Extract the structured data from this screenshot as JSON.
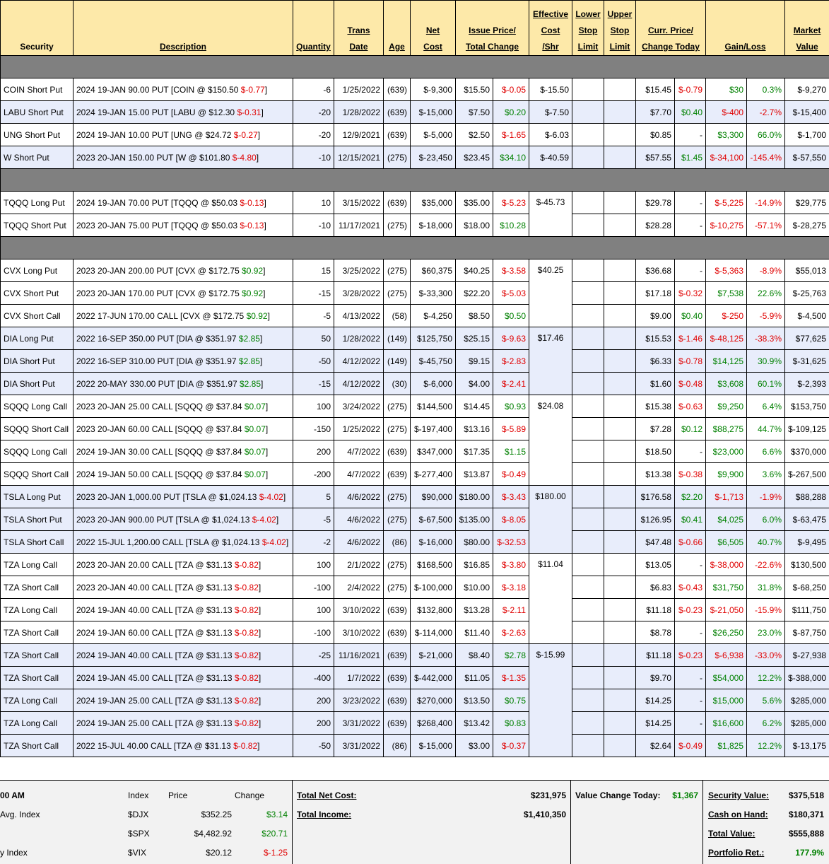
{
  "headers": {
    "security": "Security",
    "description": "Description",
    "quantity": "Quantity",
    "trans_date": [
      "Trans",
      "Date"
    ],
    "age": "Age",
    "net_cost": [
      "Net",
      "Cost"
    ],
    "issue_price": [
      "Issue Price/",
      "Total Change"
    ],
    "eff_cost": [
      "Effective",
      "Cost",
      "/Shr"
    ],
    "lower_stop": [
      "Lower",
      "Stop",
      "Limit"
    ],
    "upper_stop": [
      "Upper",
      "Stop",
      "Limit"
    ],
    "curr_price": [
      "Curr. Price/",
      "Change Today"
    ],
    "gain_loss": "Gain/Loss",
    "market_value": [
      "Market",
      "Value"
    ]
  },
  "groups": [
    {
      "rows": [
        {
          "sec": "COIN Short Put",
          "desc": "2024 19-JAN 90.00 PUT [COIN @ $150.50 ",
          "dchg": "$-0.77",
          "dchg_c": "neg",
          "qty": "-6",
          "date": "1/25/2022",
          "age": "(639)",
          "cost": "$-9,300",
          "issue": "$15.50",
          "tchg": "$-0.05",
          "tchg_c": "neg",
          "eff": "$-15.50",
          "curr": "$15.45",
          "today": "$-0.79",
          "today_c": "neg",
          "gl": "$30",
          "gl_c": "pos",
          "pct": "0.3%",
          "pct_c": "pos",
          "mv": "$-9,270",
          "bg": "w"
        },
        {
          "sec": "LABU Short Put",
          "desc": "2024 19-JAN 15.00 PUT [LABU @ $12.30 ",
          "dchg": "$-0.31",
          "dchg_c": "neg",
          "qty": "-20",
          "date": "1/28/2022",
          "age": "(639)",
          "cost": "$-15,000",
          "issue": "$7.50",
          "tchg": "$0.20",
          "tchg_c": "pos",
          "eff": "$-7.50",
          "curr": "$7.70",
          "today": "$0.40",
          "today_c": "pos",
          "gl": "$-400",
          "gl_c": "neg",
          "pct": "-2.7%",
          "pct_c": "neg",
          "mv": "$-15,400",
          "bg": "b"
        },
        {
          "sec": "UNG Short Put",
          "desc": "2024 19-JAN 10.00 PUT [UNG @ $24.72 ",
          "dchg": "$-0.27",
          "dchg_c": "neg",
          "qty": "-20",
          "date": "12/9/2021",
          "age": "(639)",
          "cost": "$-5,000",
          "issue": "$2.50",
          "tchg": "$-1.65",
          "tchg_c": "neg",
          "eff": "$-6.03",
          "curr": "$0.85",
          "today": "-",
          "today_c": "",
          "gl": "$3,300",
          "gl_c": "pos",
          "pct": "66.0%",
          "pct_c": "pos",
          "mv": "$-1,700",
          "bg": "w"
        },
        {
          "sec": "W Short Put",
          "desc": "2023 20-JAN 150.00 PUT [W @ $101.80 ",
          "dchg": "$-4.80",
          "dchg_c": "neg",
          "qty": "-10",
          "date": "12/15/2021",
          "age": "(275)",
          "cost": "$-23,450",
          "issue": "$23.45",
          "tchg": "$34.10",
          "tchg_c": "pos",
          "eff": "$-40.59",
          "curr": "$57.55",
          "today": "$1.45",
          "today_c": "pos",
          "gl": "$-34,100",
          "gl_c": "neg",
          "pct": "-145.4%",
          "pct_c": "neg",
          "mv": "$-57,550",
          "bg": "b"
        }
      ]
    },
    {
      "rows": [
        {
          "sec": "TQQQ Long Put",
          "desc": "2024 19-JAN 70.00 PUT [TQQQ @ $50.03 ",
          "dchg": "$-0.13",
          "dchg_c": "neg",
          "qty": "10",
          "date": "3/15/2022",
          "age": "(639)",
          "cost": "$35,000",
          "issue": "$35.00",
          "tchg": "$-5.23",
          "tchg_c": "neg",
          "eff": "$-45.73",
          "eff_span": 2,
          "curr": "$29.78",
          "today": "-",
          "today_c": "",
          "gl": "$-5,225",
          "gl_c": "neg",
          "pct": "-14.9%",
          "pct_c": "neg",
          "mv": "$29,775",
          "bg": "w"
        },
        {
          "sec": "TQQQ Short Put",
          "desc": "2023 20-JAN 75.00 PUT [TQQQ @ $50.03 ",
          "dchg": "$-0.13",
          "dchg_c": "neg",
          "qty": "-10",
          "date": "11/17/2021",
          "age": "(275)",
          "cost": "$-18,000",
          "issue": "$18.00",
          "tchg": "$10.28",
          "tchg_c": "pos",
          "eff_skip": true,
          "curr": "$28.28",
          "today": "-",
          "today_c": "",
          "gl": "$-10,275",
          "gl_c": "neg",
          "pct": "-57.1%",
          "pct_c": "neg",
          "mv": "$-28,275",
          "bg": "w"
        }
      ]
    },
    {
      "rows": [
        {
          "sec": "CVX Long Put",
          "desc": "2023 20-JAN 200.00 PUT [CVX @ $172.75 ",
          "dchg": "$0.92",
          "dchg_c": "pos",
          "qty": "15",
          "date": "3/25/2022",
          "age": "(275)",
          "cost": "$60,375",
          "issue": "$40.25",
          "tchg": "$-3.58",
          "tchg_c": "neg",
          "eff": "$40.25",
          "eff_span": 3,
          "curr": "$36.68",
          "today": "-",
          "today_c": "",
          "gl": "$-5,363",
          "gl_c": "neg",
          "pct": "-8.9%",
          "pct_c": "neg",
          "mv": "$55,013",
          "bg": "w"
        },
        {
          "sec": "CVX Short Put",
          "desc": "2023 20-JAN 170.00 PUT [CVX @ $172.75 ",
          "dchg": "$0.92",
          "dchg_c": "pos",
          "qty": "-15",
          "date": "3/28/2022",
          "age": "(275)",
          "cost": "$-33,300",
          "issue": "$22.20",
          "tchg": "$-5.03",
          "tchg_c": "neg",
          "eff_skip": true,
          "curr": "$17.18",
          "today": "$-0.32",
          "today_c": "neg",
          "gl": "$7,538",
          "gl_c": "pos",
          "pct": "22.6%",
          "pct_c": "pos",
          "mv": "$-25,763",
          "bg": "w"
        },
        {
          "sec": "CVX Short Call",
          "desc": "2022 17-JUN 170.00 CALL [CVX @ $172.75 ",
          "dchg": "$0.92",
          "dchg_c": "pos",
          "qty": "-5",
          "date": "4/13/2022",
          "age": "(58)",
          "cost": "$-4,250",
          "issue": "$8.50",
          "tchg": "$0.50",
          "tchg_c": "pos",
          "eff_skip": true,
          "curr": "$9.00",
          "today": "$0.40",
          "today_c": "pos",
          "gl": "$-250",
          "gl_c": "neg",
          "pct": "-5.9%",
          "pct_c": "neg",
          "mv": "$-4,500",
          "bg": "w"
        },
        {
          "sec": "DIA Long Put",
          "desc": "2022 16-SEP 350.00 PUT [DIA @ $351.97 ",
          "dchg": "$2.85",
          "dchg_c": "pos",
          "qty": "50",
          "date": "1/28/2022",
          "age": "(149)",
          "cost": "$125,750",
          "issue": "$25.15",
          "tchg": "$-9.63",
          "tchg_c": "neg",
          "eff": "$17.46",
          "eff_span": 3,
          "curr": "$15.53",
          "today": "$-1.46",
          "today_c": "neg",
          "gl": "$-48,125",
          "gl_c": "neg",
          "pct": "-38.3%",
          "pct_c": "neg",
          "mv": "$77,625",
          "bg": "b"
        },
        {
          "sec": "DIA Short Put",
          "desc": "2022 16-SEP 310.00 PUT [DIA @ $351.97 ",
          "dchg": "$2.85",
          "dchg_c": "pos",
          "qty": "-50",
          "date": "4/12/2022",
          "age": "(149)",
          "cost": "$-45,750",
          "issue": "$9.15",
          "tchg": "$-2.83",
          "tchg_c": "neg",
          "eff_skip": true,
          "curr": "$6.33",
          "today": "$-0.78",
          "today_c": "neg",
          "gl": "$14,125",
          "gl_c": "pos",
          "pct": "30.9%",
          "pct_c": "pos",
          "mv": "$-31,625",
          "bg": "b"
        },
        {
          "sec": "DIA Short Put",
          "desc": "2022 20-MAY 330.00 PUT [DIA @ $351.97 ",
          "dchg": "$2.85",
          "dchg_c": "pos",
          "qty": "-15",
          "date": "4/12/2022",
          "age": "(30)",
          "cost": "$-6,000",
          "issue": "$4.00",
          "tchg": "$-2.41",
          "tchg_c": "neg",
          "eff_skip": true,
          "curr": "$1.60",
          "today": "$-0.48",
          "today_c": "neg",
          "gl": "$3,608",
          "gl_c": "pos",
          "pct": "60.1%",
          "pct_c": "pos",
          "mv": "$-2,393",
          "bg": "b"
        },
        {
          "sec": "SQQQ Long Call",
          "desc": "2023 20-JAN 25.00 CALL [SQQQ @ $37.84 ",
          "dchg": "$0.07",
          "dchg_c": "pos",
          "qty": "100",
          "date": "3/24/2022",
          "age": "(275)",
          "cost": "$144,500",
          "issue": "$14.45",
          "tchg": "$0.93",
          "tchg_c": "pos",
          "eff": "$24.08",
          "eff_span": 4,
          "curr": "$15.38",
          "today": "$-0.63",
          "today_c": "neg",
          "gl": "$9,250",
          "gl_c": "pos",
          "pct": "6.4%",
          "pct_c": "pos",
          "mv": "$153,750",
          "bg": "w"
        },
        {
          "sec": "SQQQ Short Call",
          "desc": "2023 20-JAN 60.00 CALL [SQQQ @ $37.84 ",
          "dchg": "$0.07",
          "dchg_c": "pos",
          "qty": "-150",
          "date": "1/25/2022",
          "age": "(275)",
          "cost": "$-197,400",
          "issue": "$13.16",
          "tchg": "$-5.89",
          "tchg_c": "neg",
          "eff_skip": true,
          "curr": "$7.28",
          "today": "$0.12",
          "today_c": "pos",
          "gl": "$88,275",
          "gl_c": "pos",
          "pct": "44.7%",
          "pct_c": "pos",
          "mv": "$-109,125",
          "bg": "w"
        },
        {
          "sec": "SQQQ Long Call",
          "desc": "2024 19-JAN 30.00 CALL [SQQQ @ $37.84 ",
          "dchg": "$0.07",
          "dchg_c": "pos",
          "qty": "200",
          "date": "4/7/2022",
          "age": "(639)",
          "cost": "$347,000",
          "issue": "$17.35",
          "tchg": "$1.15",
          "tchg_c": "pos",
          "eff_skip": true,
          "curr": "$18.50",
          "today": "-",
          "today_c": "",
          "gl": "$23,000",
          "gl_c": "pos",
          "pct": "6.6%",
          "pct_c": "pos",
          "mv": "$370,000",
          "bg": "w"
        },
        {
          "sec": "SQQQ Short Call",
          "desc": "2024 19-JAN 50.00 CALL [SQQQ @ $37.84 ",
          "dchg": "$0.07",
          "dchg_c": "pos",
          "qty": "-200",
          "date": "4/7/2022",
          "age": "(639)",
          "cost": "$-277,400",
          "issue": "$13.87",
          "tchg": "$-0.49",
          "tchg_c": "neg",
          "eff_skip": true,
          "curr": "$13.38",
          "today": "$-0.38",
          "today_c": "neg",
          "gl": "$9,900",
          "gl_c": "pos",
          "pct": "3.6%",
          "pct_c": "pos",
          "mv": "$-267,500",
          "bg": "w"
        },
        {
          "sec": "TSLA Long Put",
          "desc": "2023 20-JAN 1,000.00 PUT [TSLA @ $1,024.13 ",
          "dchg": "$-4.02",
          "dchg_c": "neg",
          "qty": "5",
          "date": "4/6/2022",
          "age": "(275)",
          "cost": "$90,000",
          "issue": "$180.00",
          "tchg": "$-3.43",
          "tchg_c": "neg",
          "eff": "$180.00",
          "eff_span": 3,
          "curr": "$176.58",
          "today": "$2.20",
          "today_c": "pos",
          "gl": "$-1,713",
          "gl_c": "neg",
          "pct": "-1.9%",
          "pct_c": "neg",
          "mv": "$88,288",
          "bg": "b"
        },
        {
          "sec": "TSLA Short Put",
          "desc": "2023 20-JAN 900.00 PUT [TSLA @ $1,024.13 ",
          "dchg": "$-4.02",
          "dchg_c": "neg",
          "qty": "-5",
          "date": "4/6/2022",
          "age": "(275)",
          "cost": "$-67,500",
          "issue": "$135.00",
          "tchg": "$-8.05",
          "tchg_c": "neg",
          "eff_skip": true,
          "curr": "$126.95",
          "today": "$0.41",
          "today_c": "pos",
          "gl": "$4,025",
          "gl_c": "pos",
          "pct": "6.0%",
          "pct_c": "pos",
          "mv": "$-63,475",
          "bg": "b"
        },
        {
          "sec": "TSLA Short Call",
          "desc": "2022 15-JUL 1,200.00 CALL [TSLA @ $1,024.13 ",
          "dchg": "$-4.02",
          "dchg_c": "neg",
          "qty": "-2",
          "date": "4/6/2022",
          "age": "(86)",
          "cost": "$-16,000",
          "issue": "$80.00",
          "tchg": "$-32.53",
          "tchg_c": "neg",
          "eff_skip": true,
          "curr": "$47.48",
          "today": "$-0.66",
          "today_c": "neg",
          "gl": "$6,505",
          "gl_c": "pos",
          "pct": "40.7%",
          "pct_c": "pos",
          "mv": "$-9,495",
          "bg": "b"
        },
        {
          "sec": "TZA Long Call",
          "desc": "2023 20-JAN 20.00 CALL [TZA @ $31.13 ",
          "dchg": "$-0.82",
          "dchg_c": "neg",
          "qty": "100",
          "date": "2/1/2022",
          "age": "(275)",
          "cost": "$168,500",
          "issue": "$16.85",
          "tchg": "$-3.80",
          "tchg_c": "neg",
          "eff": "$11.04",
          "eff_span": 4,
          "curr": "$13.05",
          "today": "-",
          "today_c": "",
          "gl": "$-38,000",
          "gl_c": "neg",
          "pct": "-22.6%",
          "pct_c": "neg",
          "mv": "$130,500",
          "bg": "w"
        },
        {
          "sec": "TZA Short Call",
          "desc": "2023 20-JAN 40.00 CALL [TZA @ $31.13 ",
          "dchg": "$-0.82",
          "dchg_c": "neg",
          "qty": "-100",
          "date": "2/4/2022",
          "age": "(275)",
          "cost": "$-100,000",
          "issue": "$10.00",
          "tchg": "$-3.18",
          "tchg_c": "neg",
          "eff_skip": true,
          "curr": "$6.83",
          "today": "$-0.43",
          "today_c": "neg",
          "gl": "$31,750",
          "gl_c": "pos",
          "pct": "31.8%",
          "pct_c": "pos",
          "mv": "$-68,250",
          "bg": "w"
        },
        {
          "sec": "TZA Long Call",
          "desc": "2024 19-JAN 40.00 CALL [TZA @ $31.13 ",
          "dchg": "$-0.82",
          "dchg_c": "neg",
          "qty": "100",
          "date": "3/10/2022",
          "age": "(639)",
          "cost": "$132,800",
          "issue": "$13.28",
          "tchg": "$-2.11",
          "tchg_c": "neg",
          "eff_skip": true,
          "curr": "$11.18",
          "today": "$-0.23",
          "today_c": "neg",
          "gl": "$-21,050",
          "gl_c": "neg",
          "pct": "-15.9%",
          "pct_c": "neg",
          "mv": "$111,750",
          "bg": "w"
        },
        {
          "sec": "TZA Short Call",
          "desc": "2024 19-JAN 60.00 CALL [TZA @ $31.13 ",
          "dchg": "$-0.82",
          "dchg_c": "neg",
          "qty": "-100",
          "date": "3/10/2022",
          "age": "(639)",
          "cost": "$-114,000",
          "issue": "$11.40",
          "tchg": "$-2.63",
          "tchg_c": "neg",
          "eff_skip": true,
          "curr": "$8.78",
          "today": "-",
          "today_c": "",
          "gl": "$26,250",
          "gl_c": "pos",
          "pct": "23.0%",
          "pct_c": "pos",
          "mv": "$-87,750",
          "bg": "w"
        },
        {
          "sec": "TZA Short Call",
          "desc": "2024 19-JAN 40.00 CALL [TZA @ $31.13 ",
          "dchg": "$-0.82",
          "dchg_c": "neg",
          "qty": "-25",
          "date": "11/16/2021",
          "age": "(639)",
          "cost": "$-21,000",
          "issue": "$8.40",
          "tchg": "$2.78",
          "tchg_c": "pos",
          "eff": "$-15.99",
          "eff_span": 5,
          "curr": "$11.18",
          "today": "$-0.23",
          "today_c": "neg",
          "gl": "$-6,938",
          "gl_c": "neg",
          "pct": "-33.0%",
          "pct_c": "neg",
          "mv": "$-27,938",
          "bg": "b"
        },
        {
          "sec": "TZA Short Call",
          "desc": "2024 19-JAN 45.00 CALL [TZA @ $31.13 ",
          "dchg": "$-0.82",
          "dchg_c": "neg",
          "qty": "-400",
          "date": "1/7/2022",
          "age": "(639)",
          "cost": "$-442,000",
          "issue": "$11.05",
          "tchg": "$-1.35",
          "tchg_c": "neg",
          "eff_skip": true,
          "curr": "$9.70",
          "today": "-",
          "today_c": "",
          "gl": "$54,000",
          "gl_c": "pos",
          "pct": "12.2%",
          "pct_c": "pos",
          "mv": "$-388,000",
          "bg": "b"
        },
        {
          "sec": "TZA Long Call",
          "desc": "2024 19-JAN 25.00 CALL [TZA @ $31.13 ",
          "dchg": "$-0.82",
          "dchg_c": "neg",
          "qty": "200",
          "date": "3/23/2022",
          "age": "(639)",
          "cost": "$270,000",
          "issue": "$13.50",
          "tchg": "$0.75",
          "tchg_c": "pos",
          "eff_skip": true,
          "curr": "$14.25",
          "today": "-",
          "today_c": "",
          "gl": "$15,000",
          "gl_c": "pos",
          "pct": "5.6%",
          "pct_c": "pos",
          "mv": "$285,000",
          "bg": "b"
        },
        {
          "sec": "TZA Long Call",
          "desc": "2024 19-JAN 25.00 CALL [TZA @ $31.13 ",
          "dchg": "$-0.82",
          "dchg_c": "neg",
          "qty": "200",
          "date": "3/31/2022",
          "age": "(639)",
          "cost": "$268,400",
          "issue": "$13.42",
          "tchg": "$0.83",
          "tchg_c": "pos",
          "eff_skip": true,
          "curr": "$14.25",
          "today": "-",
          "today_c": "",
          "gl": "$16,600",
          "gl_c": "pos",
          "pct": "6.2%",
          "pct_c": "pos",
          "mv": "$285,000",
          "bg": "b"
        },
        {
          "sec": "TZA Short Call",
          "desc": "2022 15-JUL 40.00 CALL [TZA @ $31.13 ",
          "dchg": "$-0.82",
          "dchg_c": "neg",
          "qty": "-50",
          "date": "3/31/2022",
          "age": "(86)",
          "cost": "$-15,000",
          "issue": "$3.00",
          "tchg": "$-0.37",
          "tchg_c": "neg",
          "eff_skip": true,
          "curr": "$2.64",
          "today": "$-0.49",
          "today_c": "neg",
          "gl": "$1,825",
          "gl_c": "pos",
          "pct": "12.2%",
          "pct_c": "pos",
          "mv": "$-13,175",
          "bg": "b"
        }
      ]
    }
  ],
  "footer": {
    "time_fragment": "00 AM",
    "index_header": {
      "index": "Index",
      "price": "Price",
      "change": "Change"
    },
    "indices": [
      {
        "label": " Avg. Index",
        "sym": "$DJX",
        "price": "$352.25",
        "chg": "$3.14",
        "chg_c": "pos"
      },
      {
        "label": "",
        "sym": "$SPX",
        "price": "$4,482.92",
        "chg": "$20.71",
        "chg_c": "pos"
      },
      {
        "label": "y Index",
        "sym": "$VIX",
        "price": "$20.12",
        "chg": "$-1.25",
        "chg_c": "neg"
      }
    ],
    "total_net_cost_label": "Total Net Cost:",
    "total_net_cost": "$231,975",
    "total_income_label": "Total Income:",
    "total_income": "$1,410,350",
    "value_change_label": "Value Change Today:",
    "value_change": "$1,367",
    "security_value_label": "Security Value:",
    "security_value": "$375,518",
    "cash_label": "Cash on Hand:",
    "cash": "$180,371",
    "total_value_label": "Total Value:",
    "total_value": "$555,888",
    "portfolio_ret_label": "Portfolio Ret.:",
    "portfolio_ret": "177.9%"
  }
}
